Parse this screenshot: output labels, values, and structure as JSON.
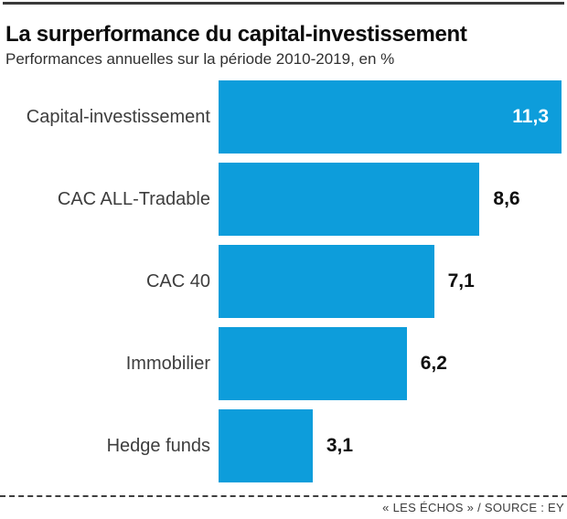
{
  "header": {
    "title": "La surperformance du capital-investissement",
    "subtitle": "Performances annuelles sur la période 2010-2019, en %"
  },
  "footer": {
    "credit": "« LES ÉCHOS » / SOURCE : EY"
  },
  "chart_data": {
    "type": "bar",
    "orientation": "horizontal",
    "title": "La surperformance du capital-investissement",
    "subtitle": "Performances annuelles sur la période 2010-2019, en %",
    "categories": [
      "Capital-investissement",
      "CAC ALL-Tradable",
      "CAC 40",
      "Immobilier",
      "Hedge funds"
    ],
    "values": [
      11.3,
      8.6,
      7.1,
      6.2,
      3.1
    ],
    "value_labels": [
      "11,3",
      "8,6",
      "7,1",
      "6,2",
      "3,1"
    ],
    "unit": "%",
    "xlabel": "",
    "ylabel": "",
    "xlim": [
      0,
      11.3
    ],
    "grid": false,
    "legend": false,
    "bar_color": "#0d9ddb",
    "value_label_color_inside": "#ffffff",
    "value_label_color_outside": "#0f0f0f",
    "source": "EY",
    "publisher": "LES ÉCHOS"
  }
}
